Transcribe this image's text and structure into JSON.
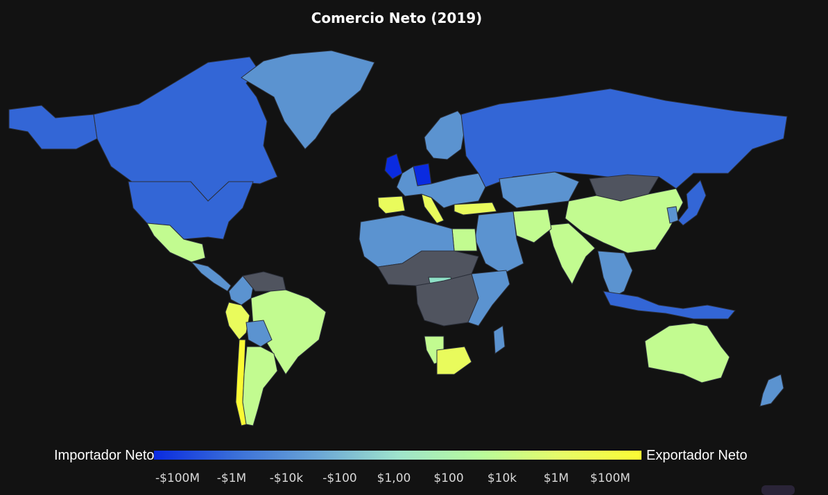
{
  "title": "Comercio Neto (2019)",
  "legend": {
    "left_label": "Importador Neto",
    "right_label": "Exportador Neto",
    "colorscale": [
      "#0a2be0",
      "#3a6fd8",
      "#6aa5d6",
      "#9ee3cc",
      "#b7fb9c",
      "#e6fb68",
      "#fbfb34"
    ],
    "ticks": [
      "-$100M",
      "-$1M",
      "-$10k",
      "-$100",
      "$1,00",
      "$100",
      "$10k",
      "$1M",
      "$100M"
    ]
  },
  "colors": {
    "background": "#121212",
    "no_data": "#50545f",
    "country_border": "#2b2f3a",
    "strong_importer": "#0a2be0",
    "importer": "#3366d6",
    "mild_importer": "#5b93d0",
    "neutral": "#8fe0c6",
    "mild_exporter": "#c2fb90",
    "exporter": "#e9fb5c",
    "strong_exporter": "#fbfb34"
  },
  "regions": [
    {
      "name": "Canadá",
      "level": "importer"
    },
    {
      "name": "Estados Unidos",
      "level": "importer"
    },
    {
      "name": "México",
      "level": "mild_exporter"
    },
    {
      "name": "Groenlandia",
      "level": "mild_importer"
    },
    {
      "name": "Centroamérica",
      "level": "mild_importer"
    },
    {
      "name": "Colombia",
      "level": "mild_importer"
    },
    {
      "name": "Venezuela",
      "level": "no_data"
    },
    {
      "name": "Perú",
      "level": "exporter"
    },
    {
      "name": "Chile",
      "level": "strong_exporter"
    },
    {
      "name": "Brasil",
      "level": "mild_exporter"
    },
    {
      "name": "Bolivia",
      "level": "mild_importer"
    },
    {
      "name": "Argentina",
      "level": "mild_exporter"
    },
    {
      "name": "Reino Unido",
      "level": "strong_importer"
    },
    {
      "name": "Alemania",
      "level": "strong_importer"
    },
    {
      "name": "España",
      "level": "exporter"
    },
    {
      "name": "Italia",
      "level": "exporter"
    },
    {
      "name": "Turquía",
      "level": "exporter"
    },
    {
      "name": "Europa",
      "level": "mild_importer"
    },
    {
      "name": "Escandinavia",
      "level": "mild_importer"
    },
    {
      "name": "Rusia",
      "level": "importer"
    },
    {
      "name": "Kazajistán",
      "level": "mild_importer"
    },
    {
      "name": "Mongolia",
      "level": "no_data"
    },
    {
      "name": "China",
      "level": "mild_exporter"
    },
    {
      "name": "India",
      "level": "mild_exporter"
    },
    {
      "name": "Pakistán",
      "level": "mild_exporter"
    },
    {
      "name": "Oriente Medio",
      "level": "mild_importer"
    },
    {
      "name": "Sudeste Asiático",
      "level": "mild_importer"
    },
    {
      "name": "Japón",
      "level": "importer"
    },
    {
      "name": "Corea",
      "level": "mild_importer"
    },
    {
      "name": "Indonesia",
      "level": "importer"
    },
    {
      "name": "Egipto",
      "level": "mild_exporter"
    },
    {
      "name": "África del Norte",
      "level": "mild_importer"
    },
    {
      "name": "Sahel",
      "level": "no_data"
    },
    {
      "name": "República Centroafricana",
      "level": "neutral"
    },
    {
      "name": "África Central",
      "level": "no_data"
    },
    {
      "name": "África Oriental",
      "level": "mild_importer"
    },
    {
      "name": "Namibia",
      "level": "mild_exporter"
    },
    {
      "name": "Sudáfrica",
      "level": "exporter"
    },
    {
      "name": "Madagascar",
      "level": "mild_importer"
    },
    {
      "name": "Australia",
      "level": "mild_exporter"
    },
    {
      "name": "Nueva Zelanda",
      "level": "mild_importer"
    }
  ]
}
